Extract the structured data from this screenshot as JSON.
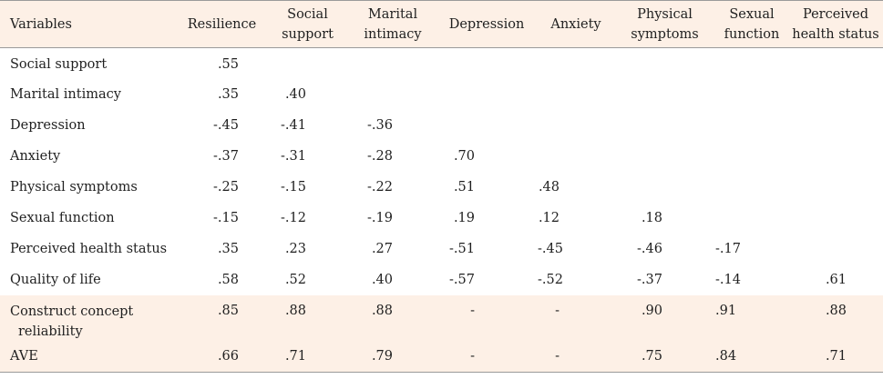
{
  "table": {
    "headers": [
      "Variables",
      "Resilience",
      "Social support",
      "Marital intimacy",
      "Depression",
      "Anxiety",
      "Physical symptoms",
      "Sexual function",
      "Perceived health status"
    ],
    "rows": [
      {
        "label": "Social support",
        "values": [
          ".55",
          "",
          "",
          "",
          "",
          "",
          "",
          ""
        ]
      },
      {
        "label": "Marital intimacy",
        "values": [
          ".35",
          ".40",
          "",
          "",
          "",
          "",
          "",
          ""
        ]
      },
      {
        "label": "Depression",
        "values": [
          "-.45",
          "-.41",
          "-.36",
          "",
          "",
          "",
          "",
          ""
        ]
      },
      {
        "label": "Anxiety",
        "values": [
          "-.37",
          "-.31",
          "-.28",
          ".70",
          "",
          "",
          "",
          ""
        ]
      },
      {
        "label": "Physical symptoms",
        "values": [
          "-.25",
          "-.15",
          "-.22",
          ".51",
          ".48",
          "",
          "",
          ""
        ]
      },
      {
        "label": "Sexual function",
        "values": [
          "-.15",
          "-.12",
          "-.19",
          ".19",
          ".12",
          ".18",
          "",
          ""
        ]
      },
      {
        "label": "Perceived health status",
        "values": [
          ".35",
          ".23",
          ".27",
          "-.51",
          "-.45",
          "-.46",
          "-.17",
          ""
        ]
      },
      {
        "label": "Quality of life",
        "values": [
          ".58",
          ".52",
          ".40",
          "-.57",
          "-.52",
          "-.37",
          "-.14",
          ".61"
        ]
      }
    ],
    "summary_rows": [
      {
        "label_line1": "Construct concept",
        "label_line2": "reliability",
        "values": [
          ".85",
          ".88",
          ".88",
          "-",
          "-",
          ".90",
          ".91",
          ".88"
        ]
      },
      {
        "label_line1": "AVE",
        "label_line2": "",
        "values": [
          ".66",
          ".71",
          ".79",
          "-",
          "-",
          ".75",
          ".84",
          ".71"
        ]
      }
    ]
  }
}
